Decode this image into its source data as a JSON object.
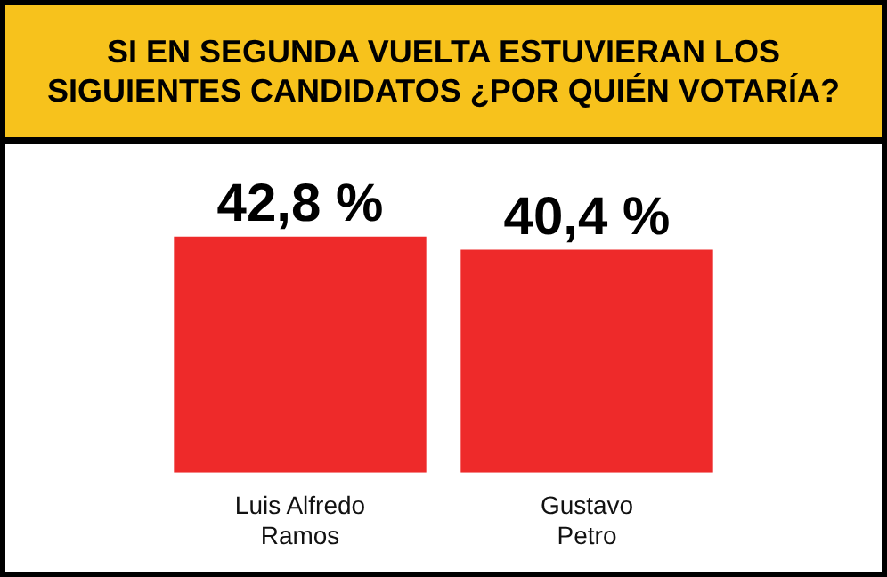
{
  "chart_data": {
    "type": "bar",
    "title": "SI EN SEGUNDA VUELTA ESTUVIERAN LOS SIGUIENTES CANDIDATOS ¿POR QUIÉN VOTARÍA?",
    "categories": [
      "Luis Alfredo Ramos",
      "Gustavo Petro"
    ],
    "values": [
      42.8,
      40.4
    ],
    "value_labels": [
      "42,8 %",
      "40,4 %"
    ],
    "color": "#ee2a2a"
  }
}
